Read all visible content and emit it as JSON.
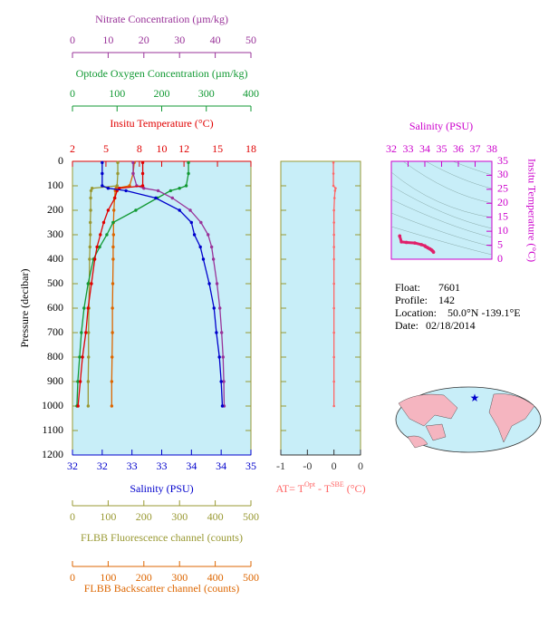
{
  "chart_data": [
    {
      "type": "line",
      "y_label": "Pressure (decibar)",
      "ylim": [
        1200,
        0
      ],
      "yticks": [
        0,
        100,
        200,
        300,
        400,
        500,
        600,
        700,
        800,
        900,
        1000,
        1100,
        1200
      ],
      "y": [
        5,
        50,
        100,
        110,
        120,
        150,
        200,
        250,
        300,
        350,
        400,
        500,
        600,
        700,
        800,
        900,
        1000
      ],
      "series": [
        {
          "name": "Nitrate Concentration (µm/kg)",
          "side": "top",
          "color": "#993399",
          "xlim": [
            0,
            50
          ],
          "xticks": [
            0,
            10,
            20,
            30,
            40,
            50
          ],
          "values": [
            17,
            17,
            18,
            20,
            24,
            28,
            33,
            36,
            38,
            39,
            39.5,
            40.5,
            41.3,
            41.8,
            42.2,
            42.4,
            42.5
          ]
        },
        {
          "name": "Optode Oxygen Concentration (µm/kg)",
          "side": "top",
          "color": "#119933",
          "xlim": [
            0,
            400
          ],
          "xticks": [
            0,
            100,
            200,
            300,
            400
          ],
          "values": [
            260,
            260,
            255,
            240,
            220,
            190,
            142,
            91,
            77,
            61,
            47,
            35,
            26,
            20,
            16,
            12,
            10
          ]
        },
        {
          "name": "Insitu Temperature (°C)",
          "side": "top",
          "color": "#e00000",
          "xlim": [
            2,
            18
          ],
          "xticks": [
            2,
            5,
            8,
            10,
            12,
            15,
            18
          ],
          "values": [
            8.3,
            8.3,
            8.3,
            6.2,
            6.0,
            5.8,
            5.2,
            4.8,
            4.5,
            4.2,
            4.0,
            3.7,
            3.4,
            3.2,
            2.9,
            2.7,
            2.5
          ]
        },
        {
          "name": "Salinity (PSU)",
          "side": "bottom",
          "color": "#0000cc",
          "xlim": [
            32,
            35
          ],
          "xticks": [
            32,
            {
              "value": 32.5,
              "label": "32"
            },
            33,
            {
              "value": 33.5,
              "label": "33"
            },
            34,
            {
              "value": 34.5,
              "label": "34"
            },
            35
          ],
          "values": [
            32.5,
            32.5,
            32.5,
            32.6,
            32.9,
            33.4,
            33.8,
            34.0,
            34.05,
            34.15,
            34.2,
            34.3,
            34.38,
            34.42,
            34.47,
            34.5,
            34.52
          ]
        },
        {
          "name": "FLBB Fluorescence channel (counts)",
          "side": "bottom",
          "color": "#999933",
          "xlim": [
            0,
            500
          ],
          "xticks": [
            0,
            100,
            200,
            300,
            400,
            500
          ],
          "values": [
            127,
            127,
            125,
            55,
            52,
            51,
            51,
            50,
            50,
            49,
            48,
            47,
            46,
            45,
            45,
            44,
            44
          ]
        },
        {
          "name": "FLBB Backscatter channel (counts)",
          "side": "bottom",
          "color": "#dd6600",
          "xlim": [
            0,
            500
          ],
          "xticks": [
            0,
            100,
            200,
            300,
            400,
            500
          ],
          "values": [
            173,
            170,
            160,
            122,
            120,
            118,
            116,
            115,
            115,
            114,
            114,
            113,
            112,
            112,
            111,
            110,
            110
          ]
        }
      ]
    },
    {
      "type": "line",
      "x_label_parts": [
        "AT= T",
        "Opt",
        " - T",
        "SBE",
        " (°C)"
      ],
      "color": "#ff6666",
      "xlim": [
        -1,
        0.5
      ],
      "xticks": [
        -1,
        {
          "value": -0.5,
          "label": "-0"
        },
        0,
        {
          "value": 0.5,
          "label": "0"
        }
      ],
      "ylim": [
        1200,
        0
      ],
      "yticks": [
        0,
        100,
        200,
        300,
        400,
        500,
        600,
        700,
        800,
        900,
        1000,
        1100,
        1200
      ],
      "y": [
        5,
        50,
        100,
        110,
        120,
        150,
        200,
        250,
        300,
        350,
        400,
        500,
        600,
        700,
        800,
        900,
        1000
      ],
      "values": [
        -0.01,
        -0.01,
        -0.01,
        0.03,
        0.02,
        0.01,
        0.0,
        0.0,
        0.0,
        0.0,
        0.0,
        0.0,
        0.0,
        0.0,
        0.0,
        0.0,
        0.0
      ]
    },
    {
      "type": "scatter",
      "x_label": "Salinity (PSU)",
      "y_label": "Insitu Temperature (°C)",
      "color": "#e0206a",
      "axis_color": "#cc00cc",
      "xlim": [
        32,
        38
      ],
      "xticks": [
        32,
        33,
        34,
        35,
        36,
        37,
        38
      ],
      "ylim": [
        0,
        35
      ],
      "yticks": [
        0,
        5,
        10,
        15,
        20,
        25,
        30,
        35
      ],
      "x": [
        32.5,
        32.5,
        32.5,
        32.6,
        32.9,
        33.4,
        33.8,
        34.0,
        34.05,
        34.15,
        34.2,
        34.3,
        34.38,
        34.42,
        34.47,
        34.5,
        34.52
      ],
      "y": [
        8.3,
        8.3,
        8.3,
        6.2,
        6.0,
        5.8,
        5.2,
        4.8,
        4.5,
        4.2,
        4.0,
        3.7,
        3.4,
        3.2,
        2.9,
        2.7,
        2.5
      ]
    }
  ],
  "info": {
    "labels": [
      "Float:",
      "Profile:",
      "Location:",
      "Date:"
    ],
    "values": [
      "7601",
      "142",
      "50.0°N  -139.1°E",
      "02/18/2014"
    ]
  }
}
